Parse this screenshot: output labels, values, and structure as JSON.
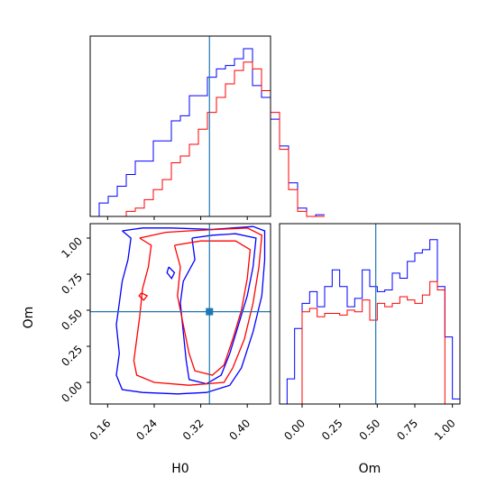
{
  "chart_data": [
    {
      "type": "histogram",
      "panel": "H0 marginal",
      "xlim": [
        0.13,
        0.44
      ],
      "truth": 0.335,
      "bin_width": 0.0155,
      "bin_start": 0.13,
      "series": [
        {
          "name": "",
          "color": "#0000ff",
          "values": [
            0,
            0.08,
            0.12,
            0.18,
            0.25,
            0.33,
            0.33,
            0.45,
            0.45,
            0.57,
            0.6,
            0.72,
            0.72,
            0.83,
            0.88,
            0.9,
            0.94,
            1.0,
            0.78,
            0.71,
            0.58,
            0.42,
            0.2,
            0.05,
            0,
            0.01
          ]
        },
        {
          "name": "",
          "color": "#ff0000",
          "values": [
            0,
            0,
            0,
            0,
            0.03,
            0.05,
            0.1,
            0.16,
            0.22,
            0.32,
            0.36,
            0.43,
            0.52,
            0.62,
            0.71,
            0.79,
            0.87,
            0.92,
            0.88,
            0.75,
            0.62,
            0.4,
            0.16,
            0.03,
            0,
            0
          ]
        }
      ],
      "xticks": [
        0.16,
        0.24,
        0.32,
        0.4
      ]
    },
    {
      "type": "histogram",
      "panel": "Om marginal",
      "xlim": [
        -0.15,
        1.05
      ],
      "truth": 0.49,
      "bin_width": 0.05,
      "bin_start": -0.15,
      "series": [
        {
          "name": "",
          "color": "#0000ff",
          "values": [
            0,
            0.15,
            0.45,
            0.6,
            0.67,
            0.58,
            0.7,
            0.8,
            0.7,
            0.58,
            0.63,
            0.8,
            0.7,
            0.67,
            0.68,
            0.78,
            0.75,
            0.85,
            0.9,
            0.92,
            0.98,
            0.7,
            0.4,
            0.03
          ]
        },
        {
          "name": "",
          "color": "#ff0000",
          "values": [
            0,
            0,
            0,
            0.55,
            0.57,
            0.52,
            0.54,
            0.54,
            0.53,
            0.56,
            0.55,
            0.62,
            0.5,
            0.6,
            0.58,
            0.6,
            0.64,
            0.62,
            0.6,
            0.65,
            0.73,
            0.68,
            0,
            0
          ]
        }
      ],
      "xticks": [
        0.0,
        0.25,
        0.5,
        0.75,
        1.0
      ],
      "xlabel": "Om"
    },
    {
      "type": "contour",
      "panel": "H0 vs Om",
      "xlim": [
        0.13,
        0.44
      ],
      "ylim": [
        -0.15,
        1.1
      ],
      "xlabel": "H0",
      "ylabel": "Om",
      "truth": [
        0.335,
        0.49
      ],
      "xticks": [
        0.16,
        0.24,
        0.32,
        0.4
      ],
      "yticks": [
        0.0,
        0.25,
        0.5,
        0.75,
        1.0
      ],
      "contours": [
        {
          "name": "",
          "color": "#0000ff",
          "level": "outer",
          "points": [
            [
              0.185,
              1.05
            ],
            [
              0.2,
              1.0
            ],
            [
              0.195,
              0.85
            ],
            [
              0.185,
              0.7
            ],
            [
              0.18,
              0.55
            ],
            [
              0.175,
              0.4
            ],
            [
              0.18,
              0.2
            ],
            [
              0.175,
              0.05
            ],
            [
              0.185,
              -0.05
            ],
            [
              0.22,
              -0.07
            ],
            [
              0.28,
              -0.08
            ],
            [
              0.33,
              -0.07
            ],
            [
              0.37,
              -0.02
            ],
            [
              0.39,
              0.1
            ],
            [
              0.41,
              0.35
            ],
            [
              0.425,
              0.6
            ],
            [
              0.43,
              0.85
            ],
            [
              0.43,
              1.05
            ],
            [
              0.41,
              1.08
            ],
            [
              0.34,
              1.06
            ],
            [
              0.27,
              1.07
            ],
            [
              0.22,
              1.07
            ],
            [
              0.185,
              1.05
            ]
          ]
        },
        {
          "name": "",
          "color": "#0000ff",
          "level": "inner",
          "points": [
            [
              0.305,
              1.0
            ],
            [
              0.31,
              0.85
            ],
            [
              0.29,
              0.7
            ],
            [
              0.285,
              0.55
            ],
            [
              0.29,
              0.35
            ],
            [
              0.295,
              0.15
            ],
            [
              0.3,
              0.02
            ],
            [
              0.33,
              -0.01
            ],
            [
              0.355,
              0.05
            ],
            [
              0.37,
              0.2
            ],
            [
              0.385,
              0.4
            ],
            [
              0.4,
              0.6
            ],
            [
              0.41,
              0.8
            ],
            [
              0.415,
              1.0
            ],
            [
              0.38,
              1.03
            ],
            [
              0.34,
              1.02
            ],
            [
              0.305,
              1.0
            ]
          ]
        },
        {
          "name": "",
          "color": "#0000ff",
          "level": "island",
          "points": [
            [
              0.265,
              0.8
            ],
            [
              0.275,
              0.76
            ],
            [
              0.27,
              0.72
            ],
            [
              0.262,
              0.76
            ],
            [
              0.265,
              0.8
            ]
          ]
        },
        {
          "name": "",
          "color": "#ff0000",
          "level": "outer",
          "points": [
            [
              0.215,
              1.0
            ],
            [
              0.235,
              0.95
            ],
            [
              0.23,
              0.8
            ],
            [
              0.22,
              0.65
            ],
            [
              0.215,
              0.45
            ],
            [
              0.21,
              0.3
            ],
            [
              0.205,
              0.15
            ],
            [
              0.21,
              0.05
            ],
            [
              0.24,
              0.0
            ],
            [
              0.3,
              -0.02
            ],
            [
              0.36,
              0.0
            ],
            [
              0.375,
              0.1
            ],
            [
              0.395,
              0.3
            ],
            [
              0.41,
              0.55
            ],
            [
              0.42,
              0.8
            ],
            [
              0.425,
              1.02
            ],
            [
              0.4,
              1.07
            ],
            [
              0.35,
              1.06
            ],
            [
              0.3,
              1.05
            ],
            [
              0.26,
              1.04
            ],
            [
              0.215,
              1.0
            ]
          ]
        },
        {
          "name": "",
          "color": "#ff0000",
          "level": "inner",
          "points": [
            [
              0.275,
              0.95
            ],
            [
              0.285,
              0.8
            ],
            [
              0.28,
              0.6
            ],
            [
              0.29,
              0.4
            ],
            [
              0.3,
              0.2
            ],
            [
              0.31,
              0.08
            ],
            [
              0.34,
              0.05
            ],
            [
              0.36,
              0.12
            ],
            [
              0.375,
              0.3
            ],
            [
              0.39,
              0.5
            ],
            [
              0.4,
              0.72
            ],
            [
              0.405,
              0.92
            ],
            [
              0.38,
              0.98
            ],
            [
              0.32,
              0.98
            ],
            [
              0.275,
              0.95
            ]
          ]
        },
        {
          "name": "",
          "color": "#ff0000",
          "level": "island",
          "points": [
            [
              0.218,
              0.62
            ],
            [
              0.228,
              0.6
            ],
            [
              0.222,
              0.57
            ],
            [
              0.214,
              0.6
            ],
            [
              0.218,
              0.62
            ]
          ]
        }
      ]
    }
  ]
}
